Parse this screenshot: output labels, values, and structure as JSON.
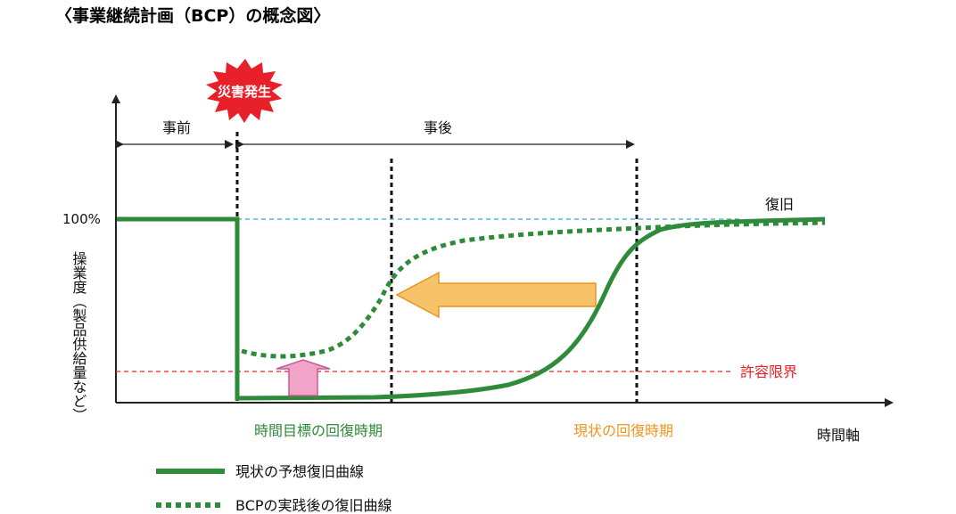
{
  "title": "〈事業継続計画（BCP）の概念図〉",
  "disaster_label": "災害発生",
  "before_label": "事前",
  "after_label": "事後",
  "y_100_label": "100%",
  "y_axis_label": "操業度（製品供給量など）",
  "recovery_label": "復旧",
  "tolerance_label": "許容限界",
  "target_recovery_label": "時間目標の回復時期",
  "current_recovery_label": "現状の回復時期",
  "x_axis_label": "時間軸",
  "legend": {
    "solid": "現状の予想復旧曲線",
    "dotted": "BCPの実践後の復旧曲線"
  },
  "colors": {
    "curve_green": "#2e8b3a",
    "arrow_orange": "#f6c26a",
    "arrow_orange_edge": "#e8961e",
    "arrow_pink": "#f2a3c8",
    "tolerance_red": "#e8202a",
    "full_line_blue": "#33a6cc",
    "burst_red": "#e8202a"
  }
}
